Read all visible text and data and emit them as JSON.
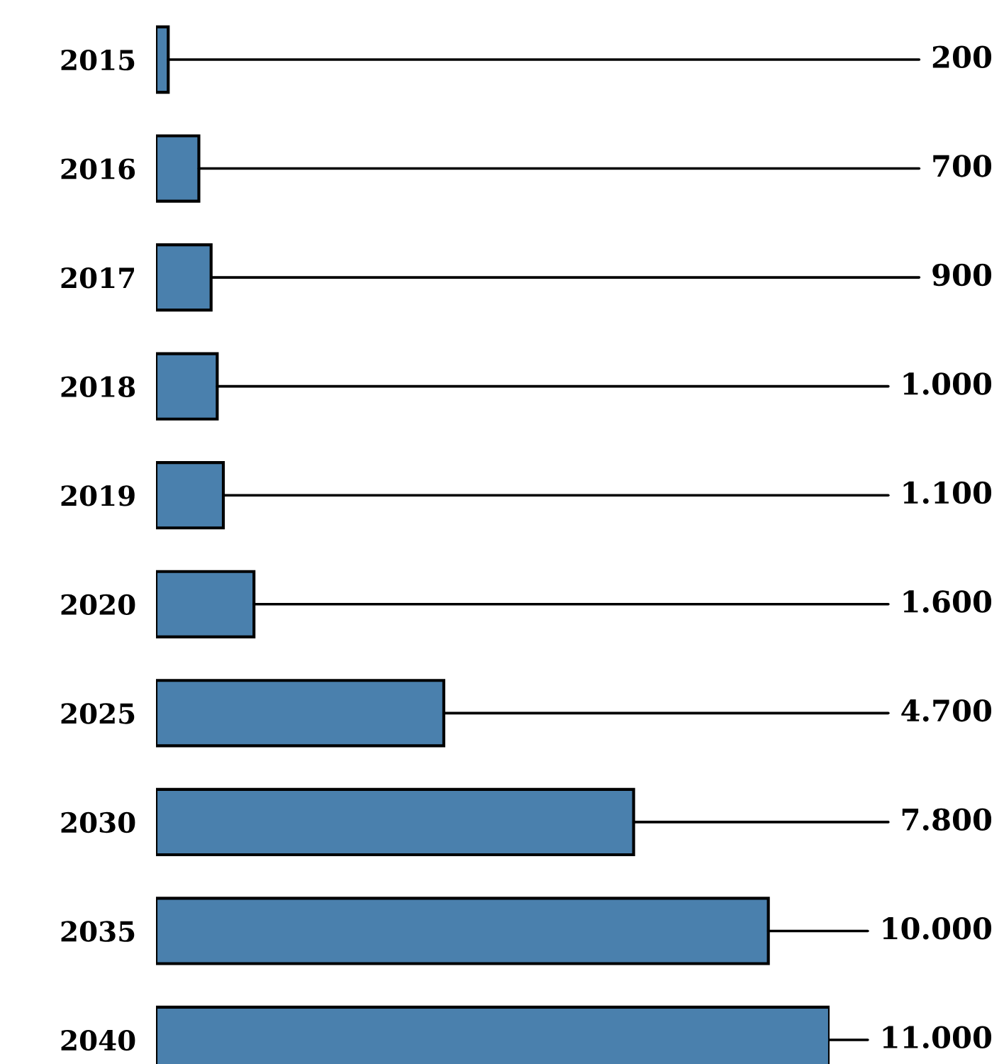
{
  "chart_data": {
    "type": "bar",
    "orientation": "horizontal",
    "categories": [
      "2015",
      "2016",
      "2017",
      "2018",
      "2019",
      "2020",
      "2025",
      "2030",
      "2035",
      "2040"
    ],
    "values": [
      200,
      700,
      900,
      1000,
      1100,
      1600,
      4700,
      7800,
      10000,
      11000
    ],
    "value_labels": [
      "200",
      "700",
      "900",
      "1.000",
      "1.100",
      "1.600",
      "4.700",
      "7.800",
      "10.000",
      "11.000"
    ],
    "color": "#4a80ad",
    "tick_labels": "y",
    "grid": false,
    "legend": false
  }
}
